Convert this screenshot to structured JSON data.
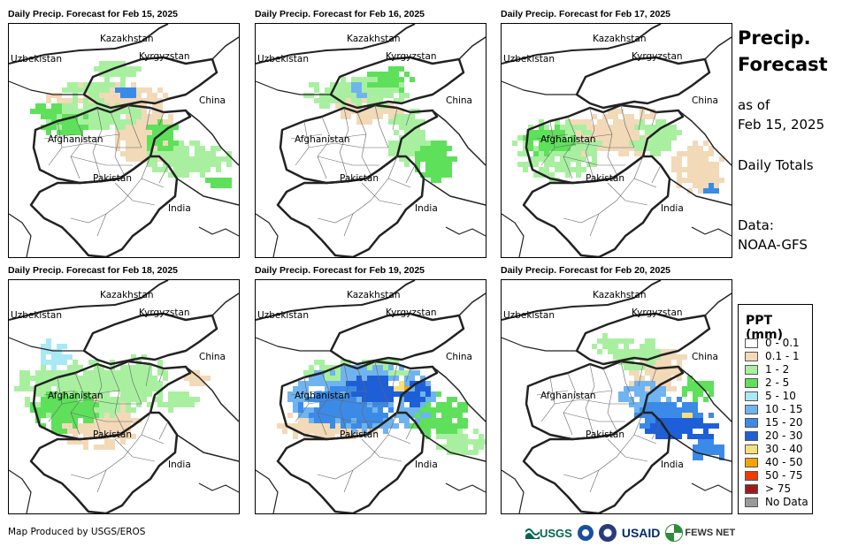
{
  "panels": [
    {
      "title": "Daily Precip. Forecast for Feb 15, 2025",
      "pattern": 0
    },
    {
      "title": "Daily Precip. Forecast for Feb 16, 2025",
      "pattern": 1
    },
    {
      "title": "Daily Precip. Forecast for Feb 17, 2025",
      "pattern": 2
    },
    {
      "title": "Daily Precip. Forecast for Feb 18, 2025",
      "pattern": 3
    },
    {
      "title": "Daily Precip. Forecast for Feb 19, 2025",
      "pattern": 4
    },
    {
      "title": "Daily Precip. Forecast for Feb 20, 2025",
      "pattern": 5
    }
  ],
  "place_labels": {
    "kazakhstan": "Kazakhstan",
    "uzbekistan": "Uzbekistan",
    "kyrgyzstan": "Kyrgyzstan",
    "china": "China",
    "afghanistan": "Afghanistan",
    "pakistan": "Pakistan",
    "india": "India"
  },
  "side": {
    "title_line1": "Precip.",
    "title_line2": "Forecast",
    "asof_line1": "as of",
    "asof_line2": "Feb 15, 2025",
    "totals": "Daily Totals",
    "data_line1": "Data:",
    "data_line2": "NOAA-GFS"
  },
  "legend": {
    "title": "PPT (mm)",
    "items": [
      {
        "label": "0 - 0.1",
        "color": "#ffffff"
      },
      {
        "label": "0.1 - 1",
        "color": "#f2d9b8"
      },
      {
        "label": "1 - 2",
        "color": "#a8f0a0"
      },
      {
        "label": "2 - 5",
        "color": "#5ee05a"
      },
      {
        "label": "5 - 10",
        "color": "#a9e8f5"
      },
      {
        "label": "10 - 15",
        "color": "#6fb4f0"
      },
      {
        "label": "15 - 20",
        "color": "#3c8ae8"
      },
      {
        "label": "20 - 30",
        "color": "#1e5fd8"
      },
      {
        "label": "30 - 40",
        "color": "#f7e07a"
      },
      {
        "label": "40 - 50",
        "color": "#f5a300"
      },
      {
        "label": "50 - 75",
        "color": "#f03a00"
      },
      {
        "label": "> 75",
        "color": "#a01a1a"
      },
      {
        "label": "No Data",
        "color": "#9a9a9a"
      }
    ]
  },
  "credit": "Map Produced by USGS/EROS",
  "logos": {
    "usgs": "USGS",
    "usaid": "USAID",
    "fewsnet": "FEWS NET"
  }
}
